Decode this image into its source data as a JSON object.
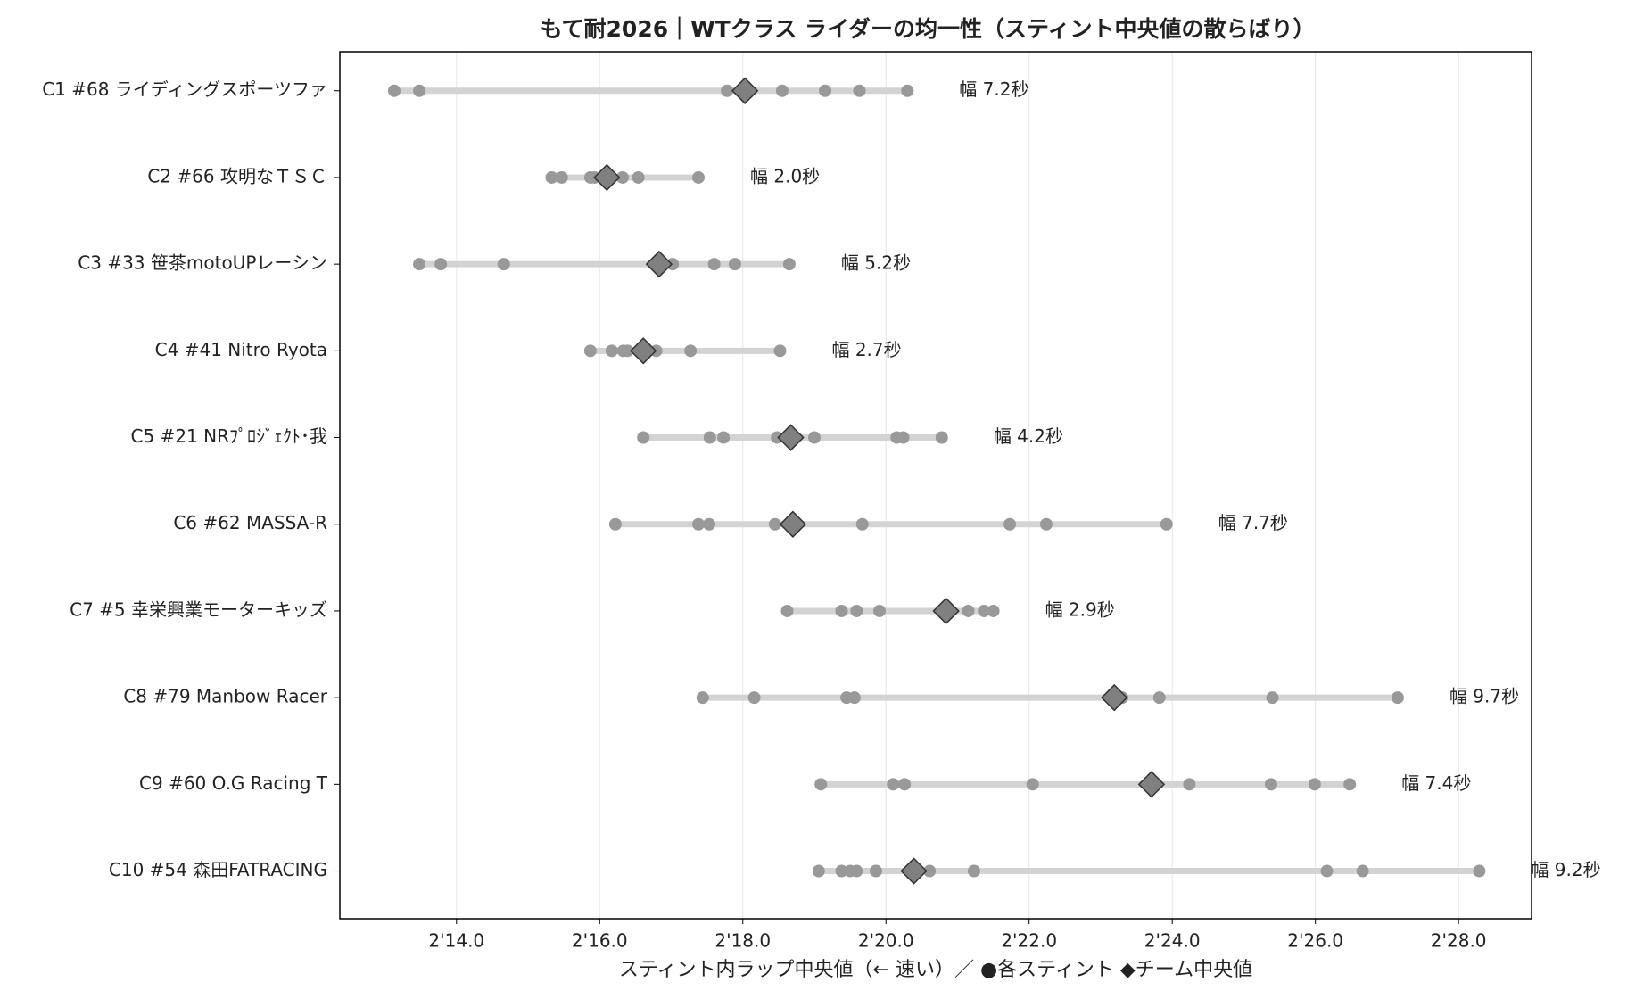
{
  "chart_data": {
    "type": "dotplot",
    "title": "もて耐2026｜WTクラス ライダーの均一性（スティント中央値の散らばり）",
    "x_label": "スティント内ラップ中央値（← 速い）／ ●各スティント ◆チーム中央値",
    "categories": [
      "C1 #68 ライディングスポーツファ",
      "C2 #66 攻明なＴＳＣ",
      "C3 #33 笹茶motoUPレーシン",
      "C4 #41 Nitro Ryota",
      "C5 #21 NRﾌﾟﾛｼﾞｪｸﾄ･我",
      "C6 #62 MASSA-R",
      "C7 #5 幸栄興業モーターキッズ",
      "C8 #79 Manbow Racer",
      "C9 #60 O.G Racing T",
      "C10 #54 森田FATRACING"
    ],
    "stints": [
      [
        133.13,
        133.48,
        137.78,
        138.55,
        139.15,
        139.63,
        140.3
      ],
      [
        135.33,
        135.47,
        135.87,
        135.93,
        136.32,
        136.54,
        137.38
      ],
      [
        133.48,
        133.78,
        134.66,
        137.02,
        137.6,
        137.89,
        138.65
      ],
      [
        135.87,
        136.17,
        136.33,
        136.39,
        136.79,
        137.27,
        138.52
      ],
      [
        136.61,
        137.54,
        137.73,
        138.48,
        139.0,
        140.15,
        140.24,
        140.78
      ],
      [
        136.22,
        137.38,
        137.53,
        138.45,
        139.67,
        141.73,
        142.24,
        143.92
      ],
      [
        138.62,
        139.38,
        139.59,
        139.91,
        141.15,
        141.37,
        141.5
      ],
      [
        137.44,
        138.16,
        139.45,
        139.56,
        143.3,
        143.82,
        145.4,
        147.15
      ],
      [
        139.09,
        140.1,
        140.26,
        142.05,
        144.24,
        145.38,
        145.99,
        146.48
      ],
      [
        139.06,
        139.38,
        139.5,
        139.59,
        139.86,
        140.61,
        141.23,
        146.16,
        146.66,
        148.29
      ]
    ],
    "medians": [
      138.03,
      136.1,
      136.83,
      136.61,
      138.67,
      138.7,
      140.84,
      143.19,
      143.71,
      140.39
    ],
    "range_labels": [
      "幅 7.2秒",
      "幅 2.0秒",
      "幅 5.2秒",
      "幅 2.7秒",
      "幅 4.2秒",
      "幅 7.7秒",
      "幅 2.9秒",
      "幅 9.7秒",
      "幅 7.4秒",
      "幅 9.2秒"
    ],
    "xlim": [
      132.37,
      149.02
    ],
    "xticks": [
      {
        "value": 134,
        "label": "2'14.0"
      },
      {
        "value": 136,
        "label": "2'16.0"
      },
      {
        "value": 138,
        "label": "2'18.0"
      },
      {
        "value": 140,
        "label": "2'20.0"
      },
      {
        "value": 142,
        "label": "2'22.0"
      },
      {
        "value": 144,
        "label": "2'24.0"
      },
      {
        "value": 146,
        "label": "2'26.0"
      },
      {
        "value": 148,
        "label": "2'28.0"
      }
    ],
    "grid": true,
    "point_color": "#999999",
    "median_color": "#808080",
    "range_color": "#d3d3d3"
  }
}
